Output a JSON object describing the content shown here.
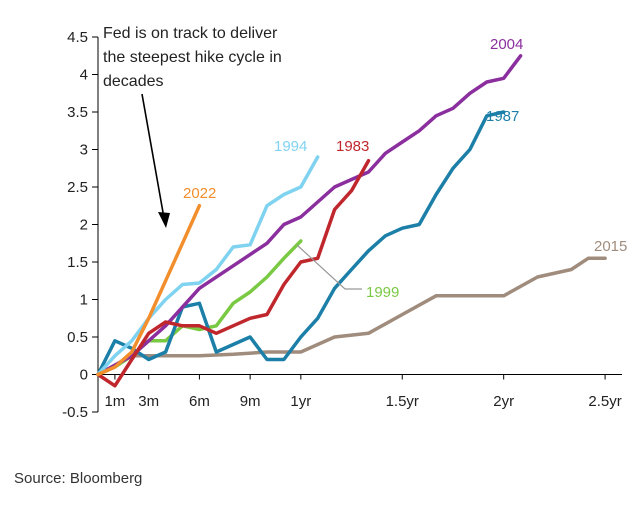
{
  "chart_data": {
    "type": "line",
    "annotation": [
      "Fed is on track to deliver",
      "the steepest hike cycle in",
      "decades"
    ],
    "source": "Source: Bloomberg",
    "ylim": [
      -0.5,
      4.5
    ],
    "yticks": [
      4.5,
      4,
      3.5,
      3,
      2.5,
      2,
      1.5,
      1,
      0.5,
      0,
      -0.5
    ],
    "ytick_labels": [
      "4.5",
      "4",
      "3.5",
      "3",
      "2.5",
      "2",
      "1.5",
      "1",
      "0.5",
      "0",
      "-0.5"
    ],
    "xlim": [
      0,
      31
    ],
    "xticks": [
      1,
      3,
      6,
      9,
      12,
      18,
      24,
      30
    ],
    "xtick_labels": [
      "1m",
      "3m",
      "6m",
      "9m",
      "1yr",
      "1.5yr",
      "2yr",
      "2.5yr"
    ],
    "grid": false,
    "series": [
      {
        "name": "2022",
        "color": "#f28e2b",
        "x": [
          0,
          1,
          2,
          3,
          4,
          5,
          6
        ],
        "y": [
          0,
          0.1,
          0.3,
          0.75,
          1.25,
          1.75,
          2.25
        ]
      },
      {
        "name": "1994",
        "color": "#7fd3f0",
        "x": [
          0,
          1,
          2,
          3,
          4,
          5,
          6,
          7,
          8,
          9,
          10,
          11,
          12,
          13
        ],
        "y": [
          0,
          0.25,
          0.45,
          0.75,
          1.0,
          1.2,
          1.22,
          1.4,
          1.7,
          1.73,
          2.25,
          2.4,
          2.5,
          2.9
        ]
      },
      {
        "name": "1983",
        "color": "#c0272d",
        "x": [
          0,
          1,
          2,
          3,
          4,
          5,
          6,
          7,
          8,
          9,
          10,
          11,
          12,
          13,
          14,
          15,
          16
        ],
        "y": [
          0,
          -0.15,
          0.2,
          0.55,
          0.7,
          0.65,
          0.65,
          0.55,
          0.65,
          0.75,
          0.8,
          1.2,
          1.5,
          1.55,
          2.2,
          2.45,
          2.85
        ]
      },
      {
        "name": "2004",
        "color": "#8b2e9e",
        "x": [
          0,
          2,
          4,
          6,
          8,
          10,
          11,
          12,
          13,
          14,
          15,
          16,
          17,
          18,
          19,
          20,
          21,
          22,
          23,
          24,
          25
        ],
        "y": [
          0,
          0.25,
          0.65,
          1.15,
          1.45,
          1.75,
          2.0,
          2.1,
          2.3,
          2.5,
          2.6,
          2.7,
          2.95,
          3.1,
          3.25,
          3.45,
          3.55,
          3.75,
          3.9,
          3.95,
          4.25
        ]
      },
      {
        "name": "1999",
        "color": "#7ac943",
        "x": [
          0,
          1,
          2,
          3,
          4,
          5,
          6,
          7,
          8,
          9,
          10,
          11,
          12
        ],
        "y": [
          0,
          0.1,
          0.25,
          0.45,
          0.45,
          0.65,
          0.6,
          0.65,
          0.95,
          1.1,
          1.3,
          1.55,
          1.78
        ]
      },
      {
        "name": "1987",
        "color": "#1b7fa8",
        "x": [
          0,
          1,
          2,
          3,
          4,
          5,
          6,
          7,
          8,
          9,
          10,
          11,
          12,
          13,
          14,
          15,
          16,
          17,
          18,
          19,
          20,
          21,
          22,
          23,
          24
        ],
        "y": [
          0,
          0.45,
          0.35,
          0.2,
          0.3,
          0.9,
          0.95,
          0.3,
          0.4,
          0.5,
          0.2,
          0.2,
          0.5,
          0.75,
          1.15,
          1.4,
          1.65,
          1.85,
          1.95,
          2.0,
          2.4,
          2.75,
          3.0,
          3.45,
          3.5
        ]
      },
      {
        "name": "2015",
        "color": "#a08c7d",
        "x": [
          0,
          2,
          4,
          6,
          8,
          10,
          12,
          14,
          16,
          18,
          20,
          22,
          24,
          26,
          28,
          29,
          30
        ],
        "y": [
          0,
          0.25,
          0.25,
          0.25,
          0.27,
          0.3,
          0.3,
          0.5,
          0.55,
          0.8,
          1.05,
          1.05,
          1.05,
          1.3,
          1.4,
          1.55,
          1.55
        ]
      }
    ]
  }
}
